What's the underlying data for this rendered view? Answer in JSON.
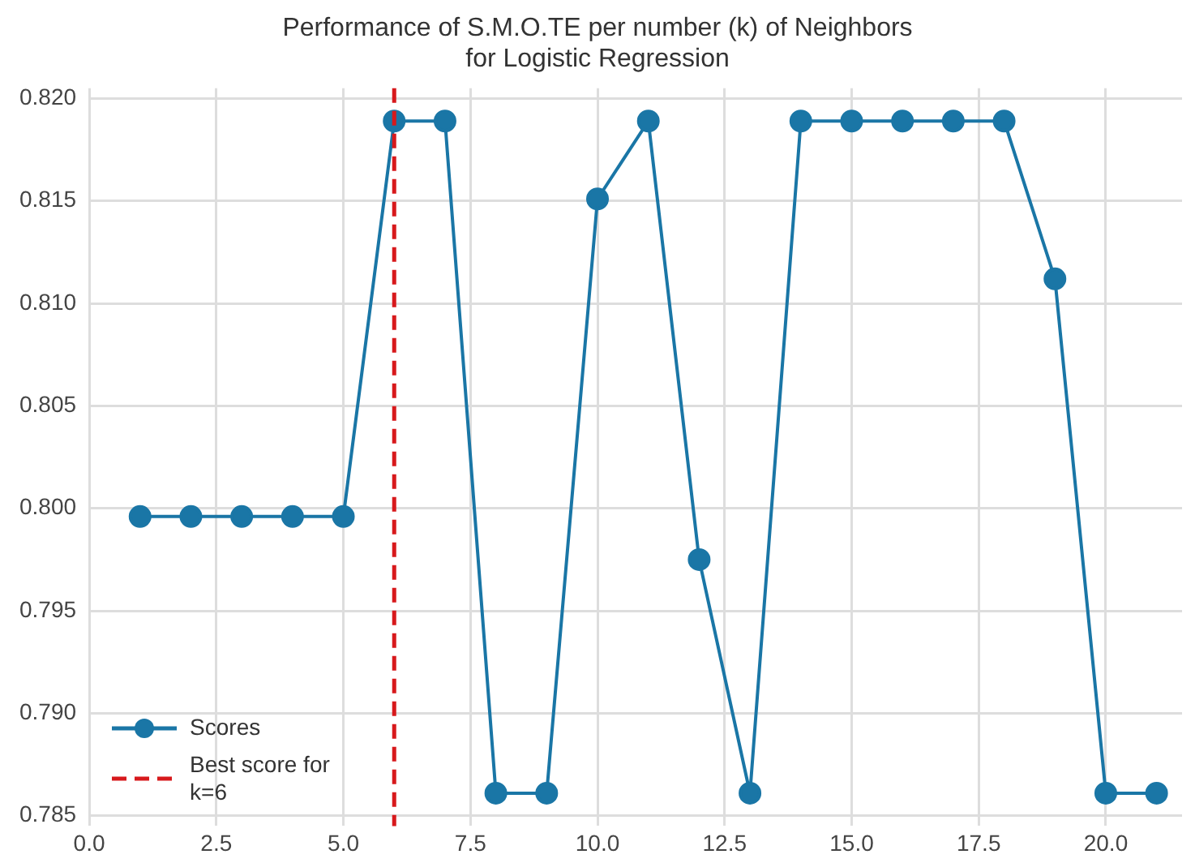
{
  "chart_data": {
    "type": "line",
    "title": "Performance of S.M.O.TE per number (k) of Neighbors\nfor Logistic Regression",
    "x": [
      1,
      2,
      3,
      4,
      5,
      6,
      7,
      8,
      9,
      10,
      11,
      12,
      13,
      14,
      15,
      16,
      17,
      18,
      19,
      20,
      21
    ],
    "series": [
      {
        "name": "Scores",
        "color": "#1a76a6",
        "values": [
          0.7996,
          0.7996,
          0.7996,
          0.7996,
          0.7996,
          0.8189,
          0.8189,
          0.7861,
          0.7861,
          0.8151,
          0.8189,
          0.7975,
          0.7861,
          0.8189,
          0.8189,
          0.8189,
          0.8189,
          0.8189,
          0.8112,
          0.7861,
          0.7861
        ]
      }
    ],
    "xlim": [
      0,
      21.5
    ],
    "xticks": [
      {
        "value": 0,
        "label": "0.0"
      },
      {
        "value": 2.5,
        "label": "2.5"
      },
      {
        "value": 5,
        "label": "5.0"
      },
      {
        "value": 7.5,
        "label": "7.5"
      },
      {
        "value": 10,
        "label": "10.0"
      },
      {
        "value": 12.5,
        "label": "12.5"
      },
      {
        "value": 15,
        "label": "15.0"
      },
      {
        "value": 17.5,
        "label": "17.5"
      },
      {
        "value": 20,
        "label": "20.0"
      }
    ],
    "ylim": [
      0.7845,
      0.8205
    ],
    "yticks": [
      {
        "value": 0.785,
        "label": "0.785"
      },
      {
        "value": 0.79,
        "label": "0.790"
      },
      {
        "value": 0.795,
        "label": "0.795"
      },
      {
        "value": 0.8,
        "label": "0.800"
      },
      {
        "value": 0.805,
        "label": "0.805"
      },
      {
        "value": 0.81,
        "label": "0.810"
      },
      {
        "value": 0.815,
        "label": "0.815"
      },
      {
        "value": 0.82,
        "label": "0.820"
      }
    ],
    "ref_lines": [
      {
        "axis": "x",
        "value": 6,
        "label": "Best score for k=6",
        "color": "#d7191c",
        "line_style": "dashed"
      }
    ],
    "grid": true,
    "legend": "bottom left",
    "marker": "circle",
    "line_style": "solid"
  }
}
